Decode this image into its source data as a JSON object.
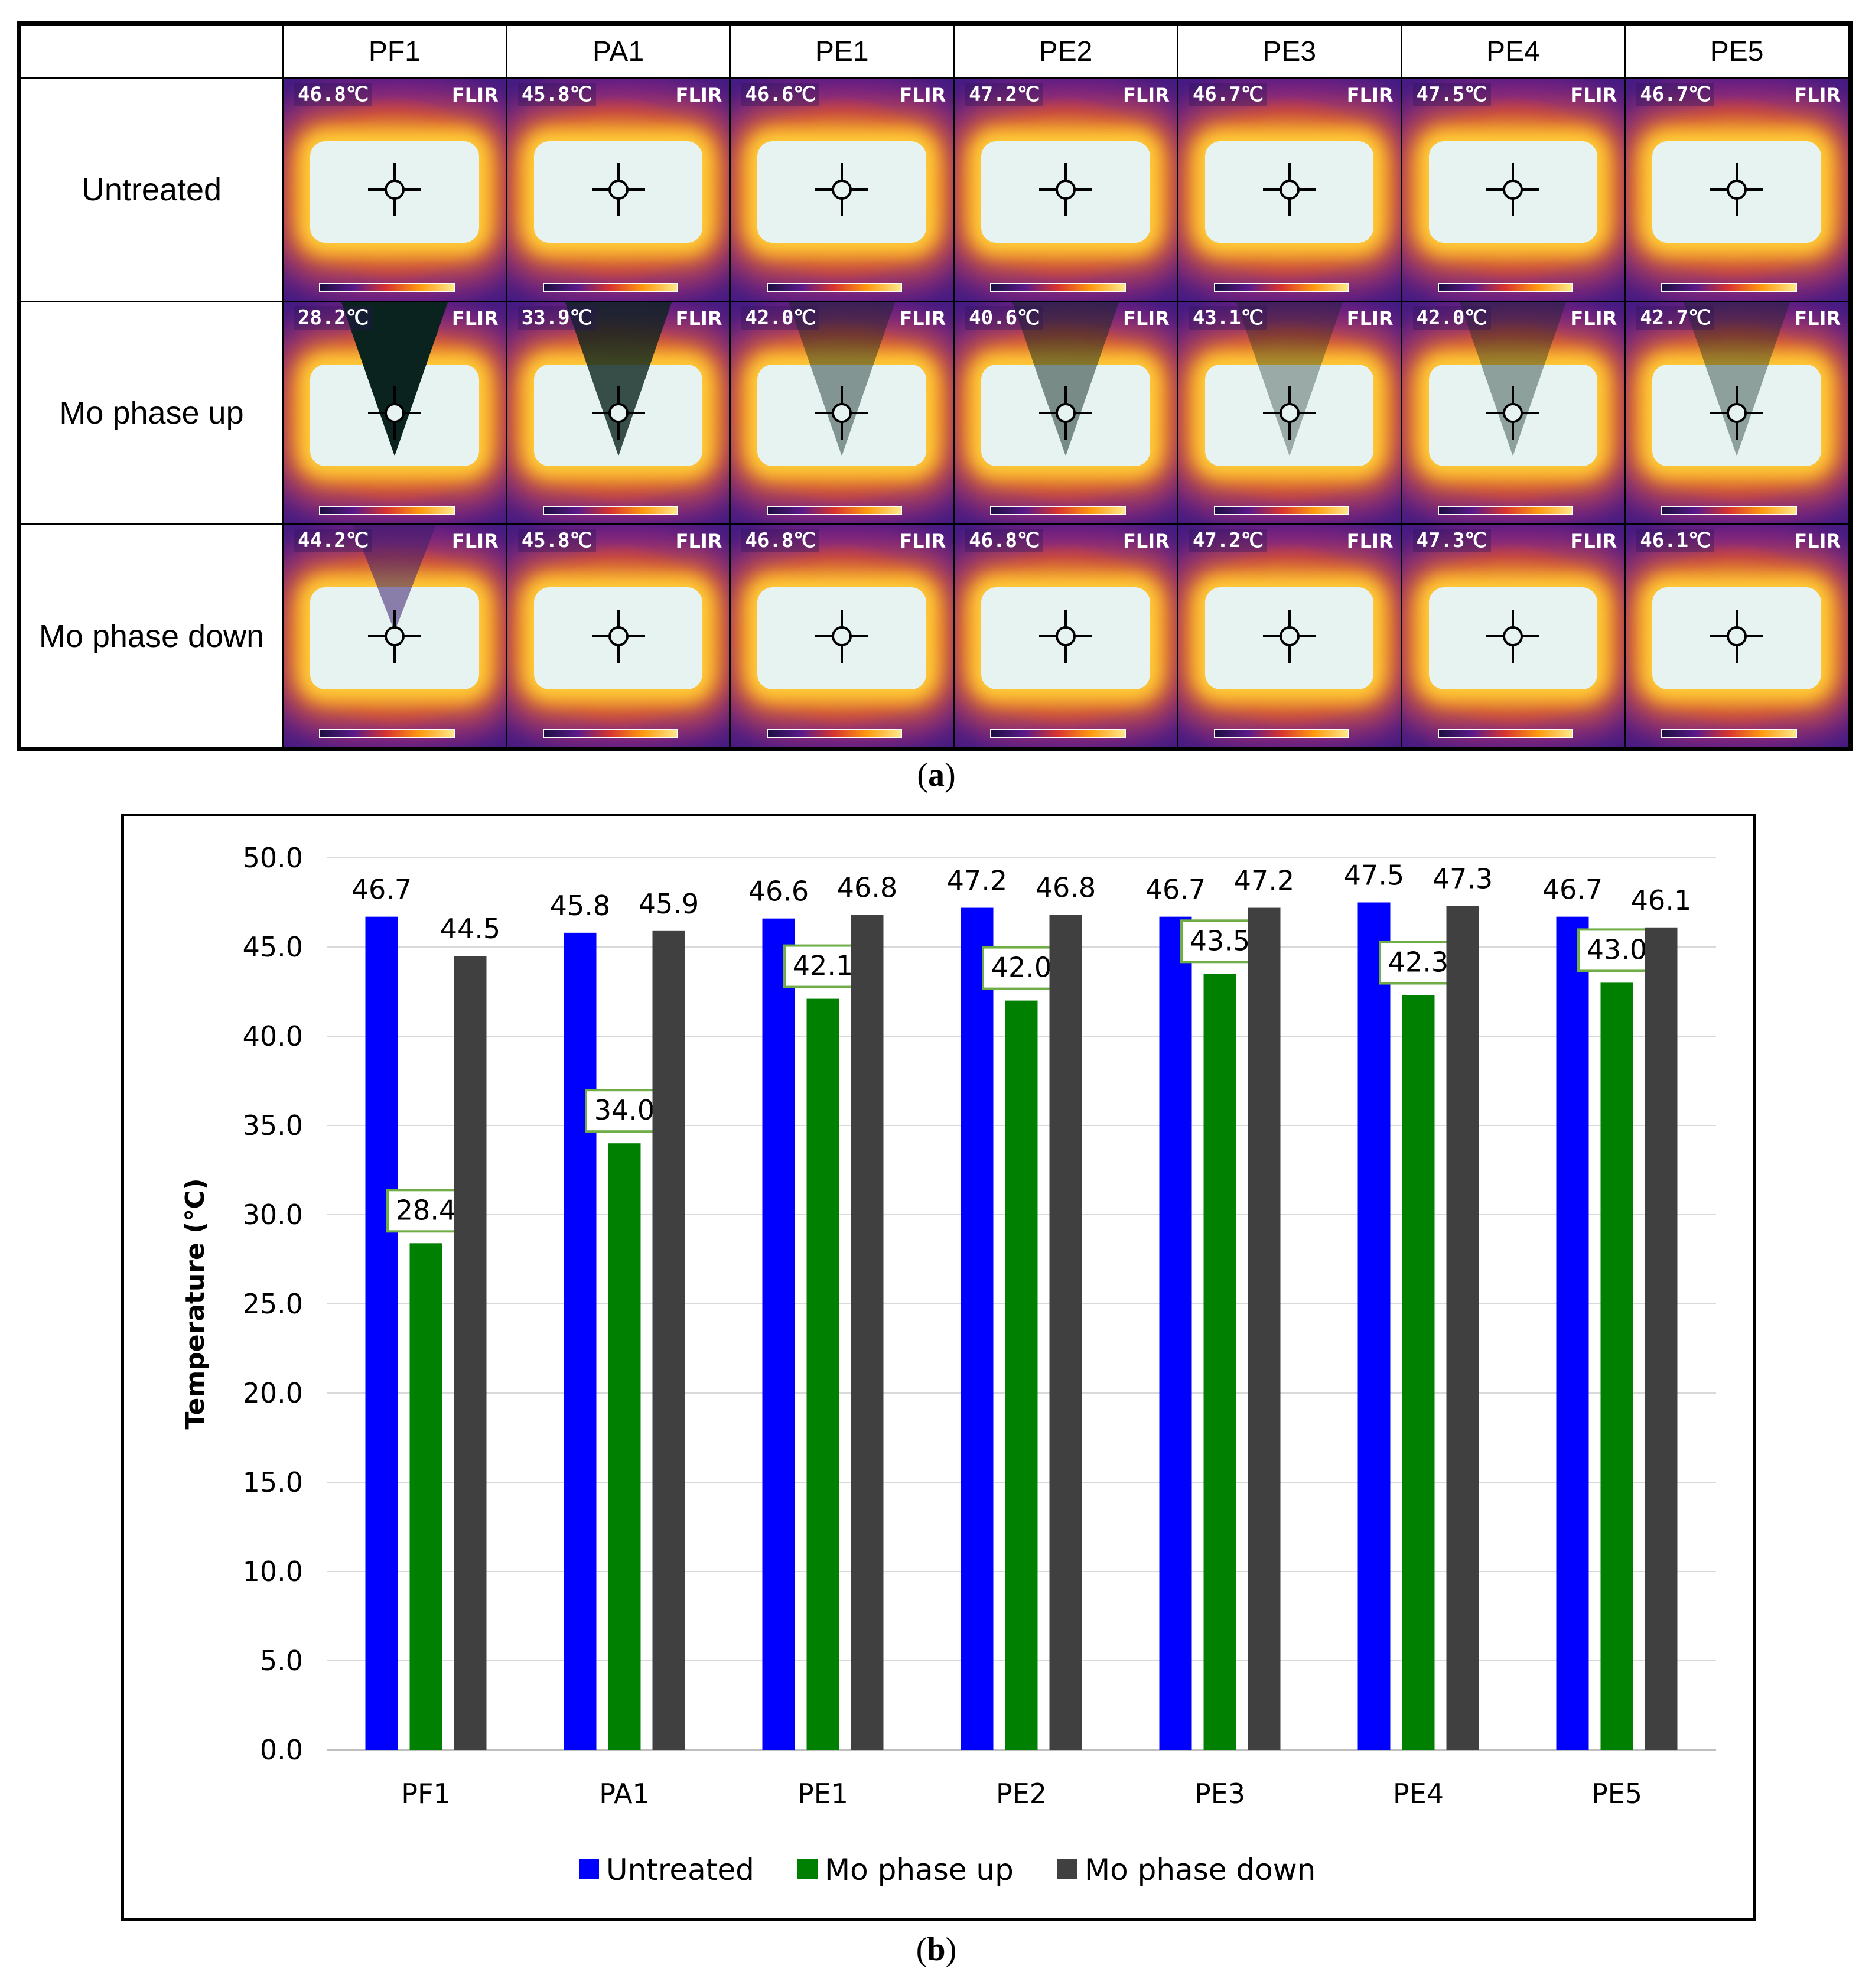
{
  "panel_a": {
    "caption": "a",
    "columns": [
      "PF1",
      "PA1",
      "PE1",
      "PE2",
      "PE3",
      "PE4",
      "PE5"
    ],
    "rows": [
      {
        "label": "Untreated",
        "temps": [
          "46.8℃",
          "45.8℃",
          "46.6℃",
          "47.2℃",
          "46.7℃",
          "47.5℃",
          "46.7℃"
        ]
      },
      {
        "label": "Mo phase up",
        "temps": [
          "28.2℃",
          "33.9℃",
          "42.0℃",
          "40.6℃",
          "43.1℃",
          "42.0℃",
          "42.7℃"
        ]
      },
      {
        "label": "Mo phase down",
        "temps": [
          "44.2℃",
          "45.8℃",
          "46.8℃",
          "46.8℃",
          "47.2℃",
          "47.3℃",
          "46.1℃"
        ]
      }
    ],
    "flir_label": "FLIR"
  },
  "panel_b": {
    "caption": "b"
  },
  "chart_data": {
    "type": "bar",
    "categories": [
      "PF1",
      "PA1",
      "PE1",
      "PE2",
      "PE3",
      "PE4",
      "PE5"
    ],
    "series": [
      {
        "name": "Untreated",
        "color": "#0000ff",
        "values": [
          46.7,
          45.8,
          46.6,
          47.2,
          46.7,
          47.5,
          46.7
        ]
      },
      {
        "name": "Mo phase up",
        "color": "#008000",
        "values": [
          28.4,
          34.0,
          42.1,
          42.0,
          43.5,
          42.3,
          43.0
        ]
      },
      {
        "name": "Mo phase down",
        "color": "#404040",
        "values": [
          44.5,
          45.9,
          46.8,
          46.8,
          47.2,
          47.3,
          46.1
        ]
      }
    ],
    "ylabel": "Temperature  (℃)",
    "xlabel": "",
    "ylim": [
      0,
      50
    ],
    "yticks": [
      "0.0",
      "5.0",
      "10.0",
      "15.0",
      "20.0",
      "25.0",
      "30.0",
      "35.0",
      "40.0",
      "45.0",
      "50.0"
    ],
    "boxed_series": "Mo phase up",
    "label_box_color": "#70ad47",
    "grid": true,
    "legend": "bottom-center"
  }
}
